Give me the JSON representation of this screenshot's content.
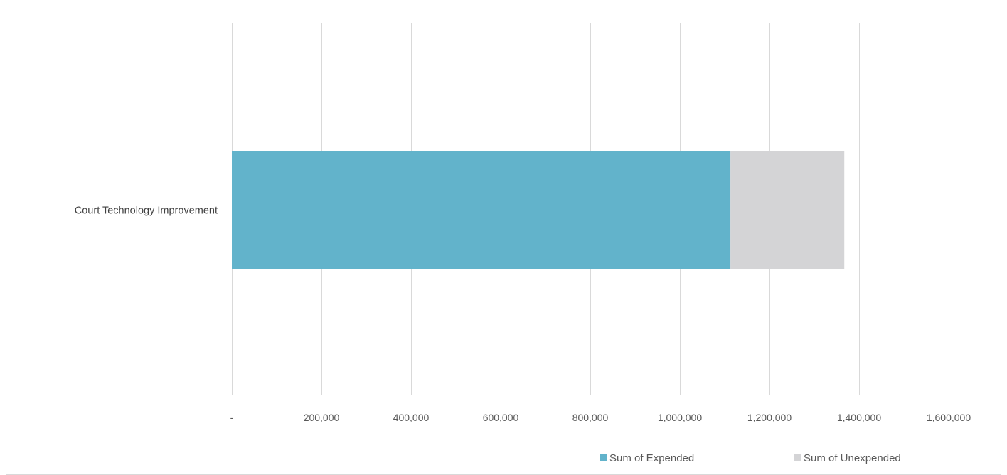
{
  "chart_data": {
    "type": "bar",
    "orientation": "horizontal",
    "stacked": true,
    "categories": [
      "Court Technology Improvement"
    ],
    "series": [
      {
        "name": "Sum of Expended",
        "values": [
          1113000
        ],
        "color": "#62b3cb"
      },
      {
        "name": "Sum of Unexpended",
        "values": [
          254000
        ],
        "color": "#d4d4d6"
      }
    ],
    "xlim": [
      0,
      1600000
    ],
    "x_ticks": [
      0,
      200000,
      400000,
      600000,
      800000,
      1000000,
      1200000,
      1400000,
      1600000
    ],
    "x_tick_labels": [
      "-",
      "200,000",
      "400,000",
      "600,000",
      "800,000",
      "1,000,000",
      "1,200,000",
      "1,400,000",
      "1,600,000"
    ],
    "grid": true,
    "legend_position": "bottom-right",
    "gridline_color": "#d9d9d9"
  }
}
